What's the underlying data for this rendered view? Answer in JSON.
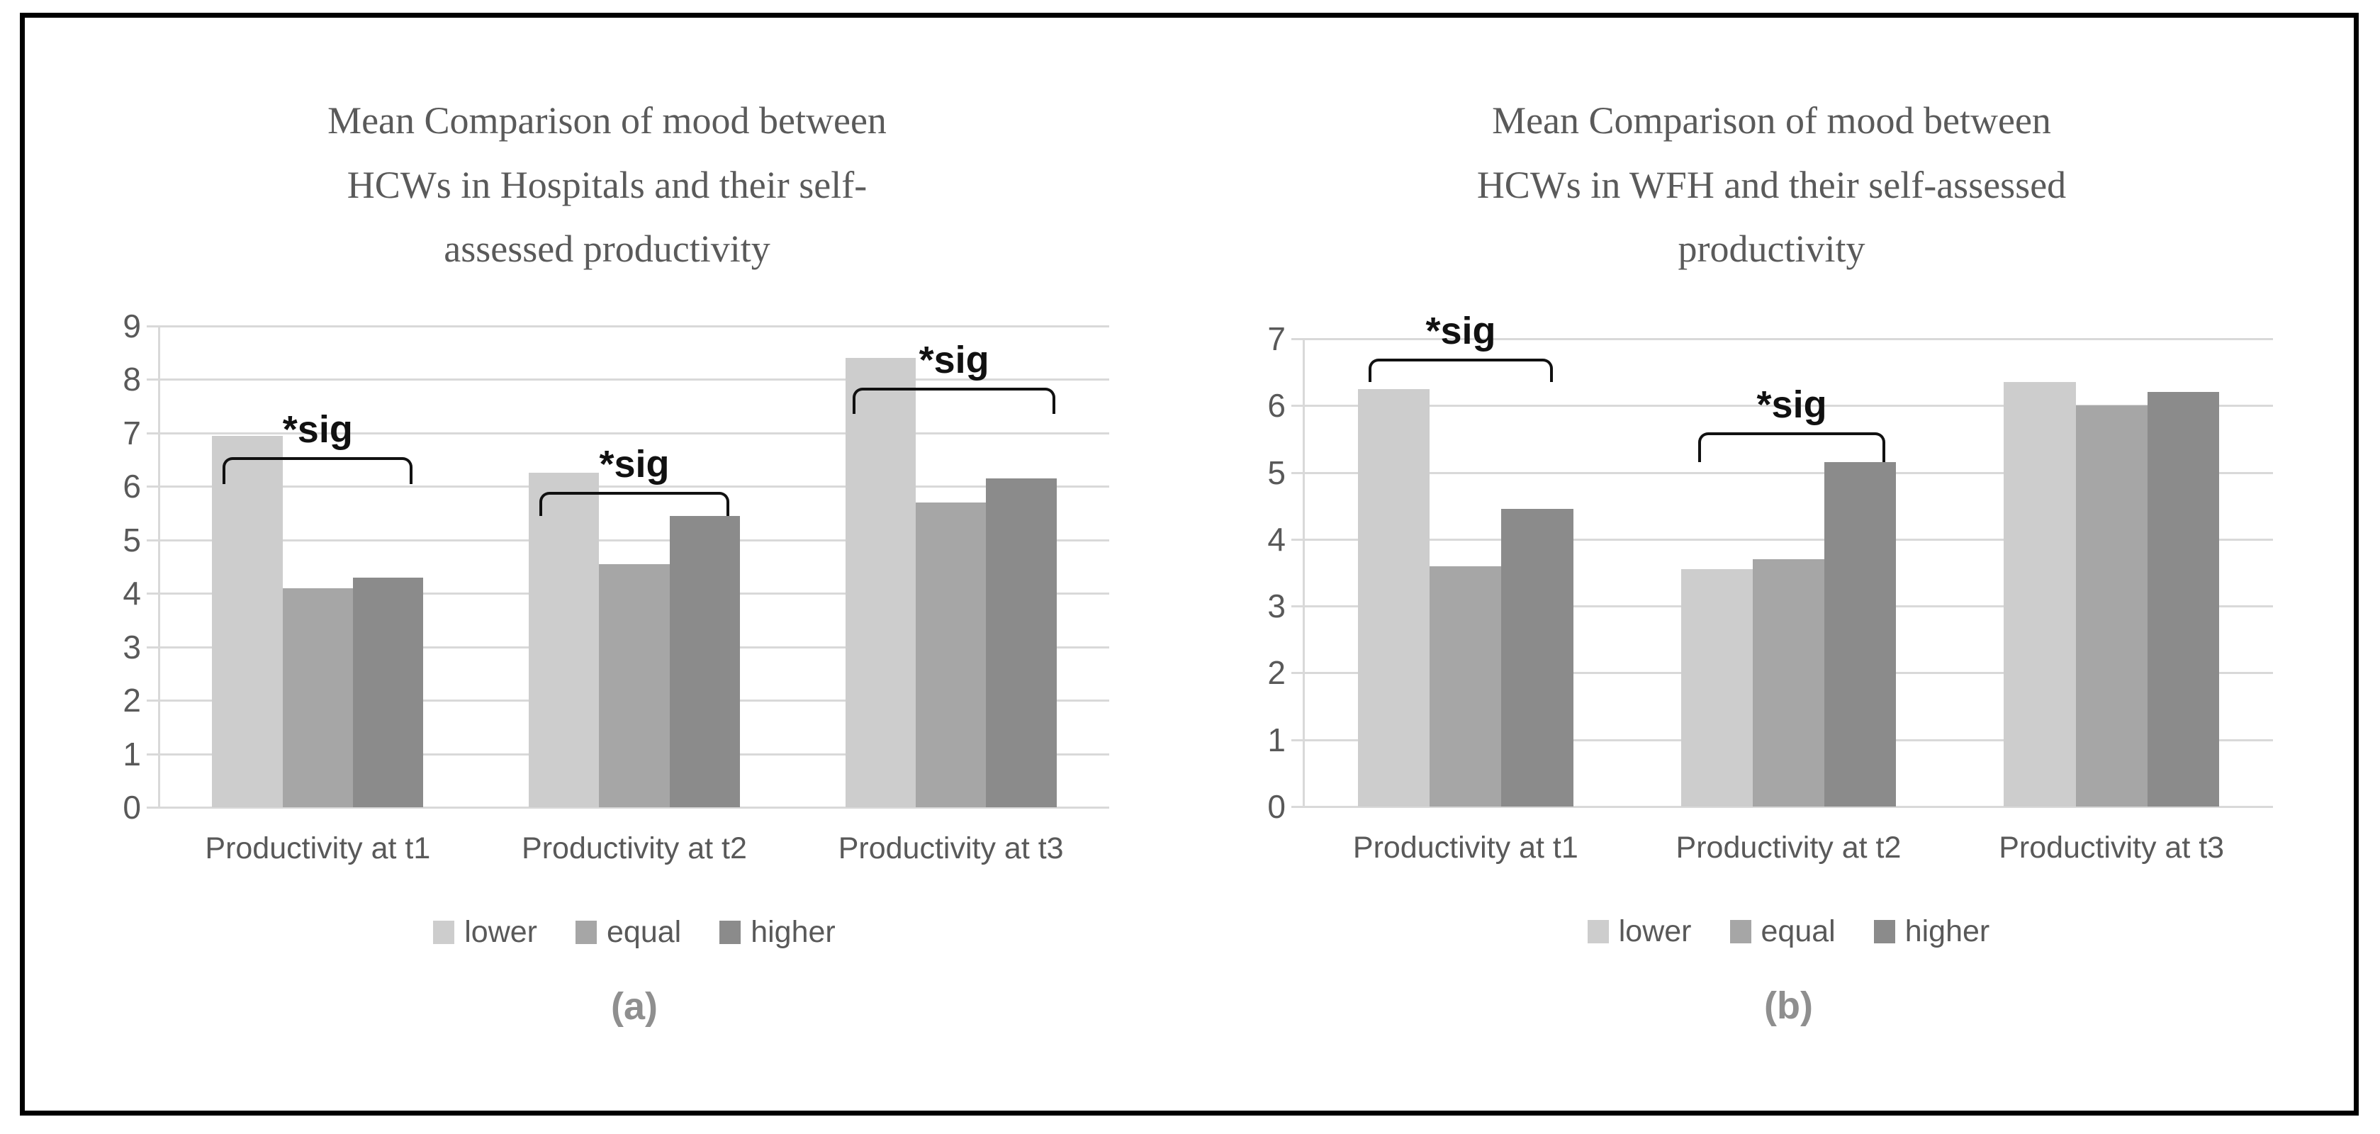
{
  "theme": {
    "background": "#ffffff",
    "frame_border": "#000000",
    "gridline_color": "#d9d9d9",
    "axis_text_color": "#595959",
    "title_text_color": "#5a5a5a",
    "caption_text_color": "#8f8f8f",
    "sig_text_color": "#111111"
  },
  "chart_data": [
    {
      "type": "bar",
      "title": "Mean Comparison of mood between HCWs in Hospitals and their self-assessed productivity",
      "title_lines": [
        "Mean Comparison of mood between",
        "HCWs in Hospitals and their self-",
        "assessed productivity"
      ],
      "caption": "(a)",
      "categories": [
        "Productivity at t1",
        "Productivity at t2",
        "Productivity at t3"
      ],
      "series": [
        {
          "name": "lower",
          "color": "#cdcdcd",
          "values": [
            6.95,
            6.25,
            8.4
          ]
        },
        {
          "name": "equal",
          "color": "#a6a6a6",
          "values": [
            4.1,
            4.55,
            5.7
          ]
        },
        {
          "name": "higher",
          "color": "#8b8b8b",
          "values": [
            4.3,
            5.45,
            6.15
          ]
        }
      ],
      "ylim": [
        0,
        9
      ],
      "ytick_step": 1,
      "grid": true,
      "legend_position": "bottom",
      "annotations": [
        {
          "label": "*sig",
          "group": 0,
          "y": 6.55,
          "drop": 0.5,
          "x_from": 0.2,
          "x_to": 0.8
        },
        {
          "label": "*sig",
          "group": 1,
          "y": 5.9,
          "drop": 0.45,
          "x_from": 0.2,
          "x_to": 0.8
        },
        {
          "label": "*sig",
          "group": 2,
          "y": 7.85,
          "drop": 0.5,
          "x_from": 0.19,
          "x_to": 0.83
        }
      ]
    },
    {
      "type": "bar",
      "title": "Mean Comparison of mood between HCWs in WFH and their self-assessed productivity",
      "title_lines": [
        "Mean Comparison of mood between",
        "HCWs in WFH and their self-assessed",
        "productivity"
      ],
      "caption": "(b)",
      "categories": [
        "Productivity at t1",
        "Productivity at t2",
        "Productivity at t3"
      ],
      "series": [
        {
          "name": "lower",
          "color": "#cdcdcd",
          "values": [
            6.25,
            3.55,
            6.35
          ]
        },
        {
          "name": "equal",
          "color": "#a6a6a6",
          "values": [
            3.6,
            3.7,
            6.0
          ]
        },
        {
          "name": "higher",
          "color": "#8b8b8b",
          "values": [
            4.45,
            5.15,
            6.2
          ]
        }
      ],
      "ylim": [
        0,
        7
      ],
      "ytick_step": 1,
      "grid": true,
      "legend_position": "bottom",
      "annotations": [
        {
          "label": "*sig",
          "group": 0,
          "y": 6.7,
          "drop": 0.35,
          "x_from": 0.2,
          "x_to": 0.77
        },
        {
          "label": "*sig",
          "group": 1,
          "y": 5.6,
          "drop": 0.45,
          "x_from": 0.22,
          "x_to": 0.8
        }
      ]
    }
  ]
}
